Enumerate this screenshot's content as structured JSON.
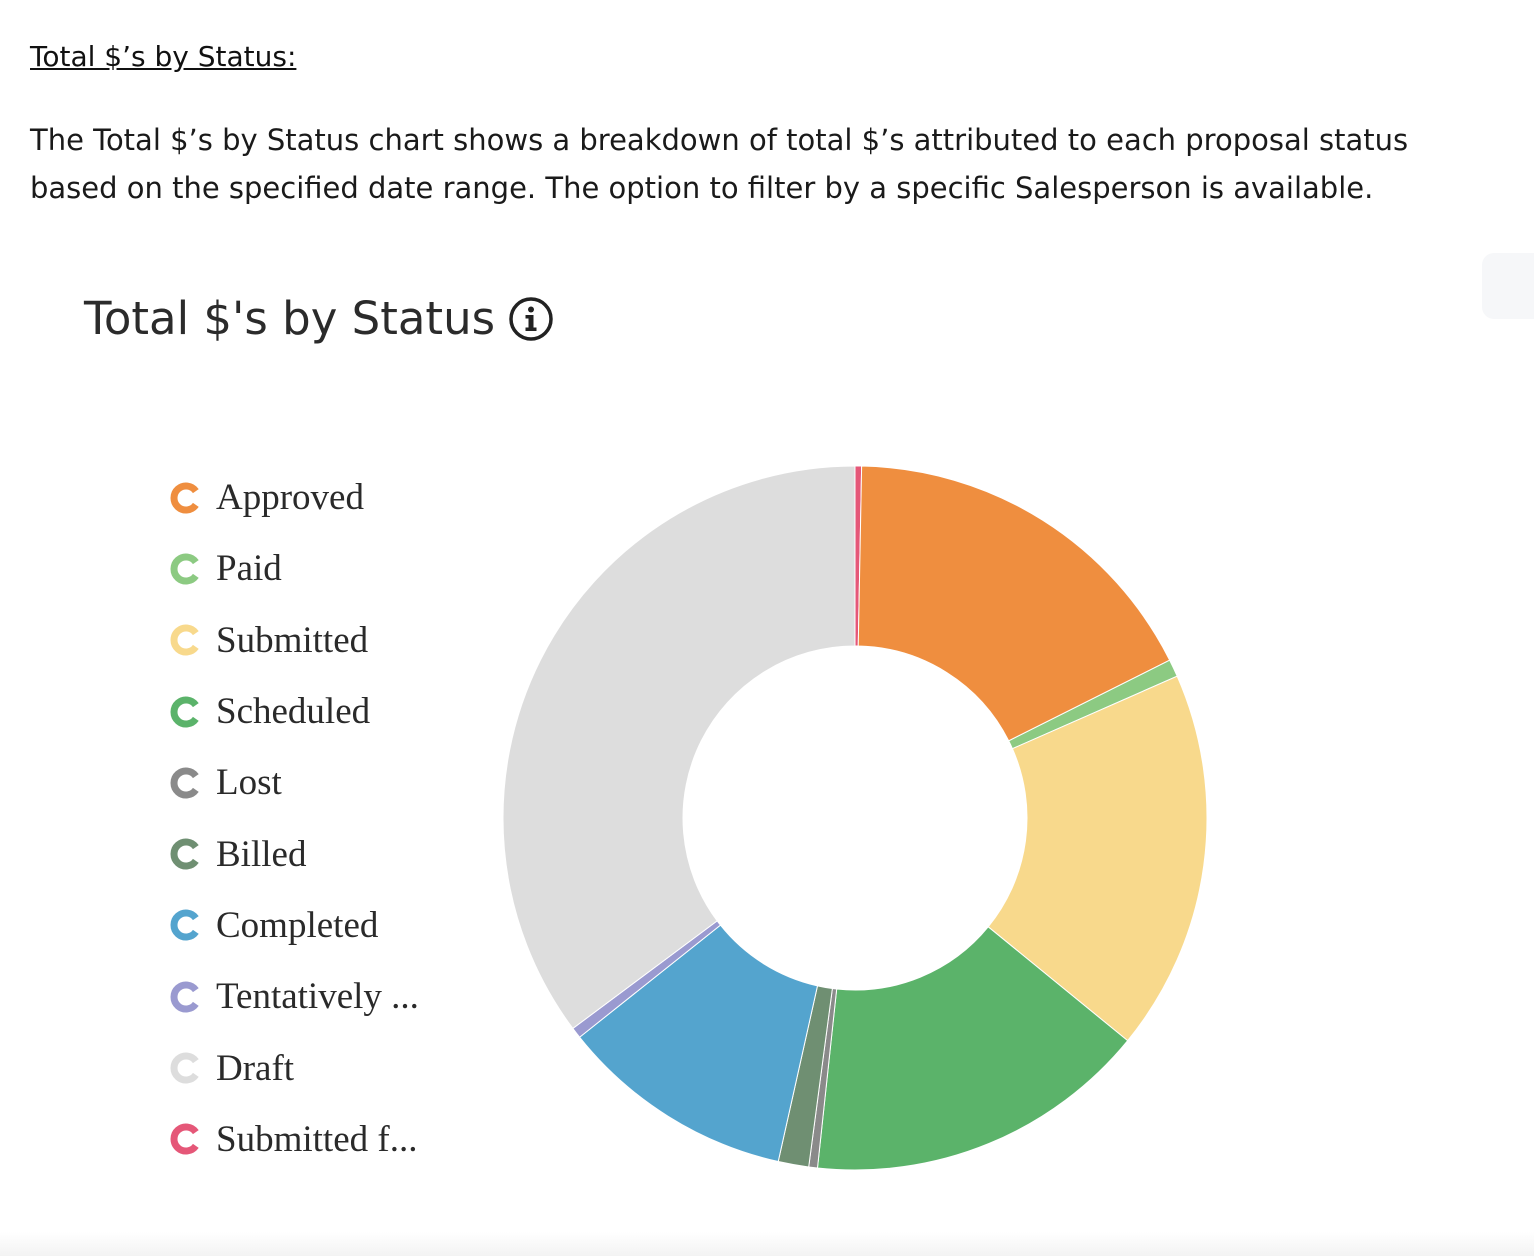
{
  "section": {
    "heading": "Total $’s by Status:",
    "description": "The Total $’s by Status chart shows a breakdown of total $’s attributed to each proposal status based on the specified date range. The option to filter by a specific Salesperson is available."
  },
  "chart_header": {
    "title": "Total $'s by Status",
    "info_icon": "info-circle-icon"
  },
  "legend": [
    {
      "label": "Approved",
      "color": "#ef8e3f"
    },
    {
      "label": "Paid",
      "color": "#8cca82"
    },
    {
      "label": "Submitted",
      "color": "#f8d98c"
    },
    {
      "label": "Scheduled",
      "color": "#5bb36a"
    },
    {
      "label": "Lost",
      "color": "#8a8a8a"
    },
    {
      "label": "Billed",
      "color": "#6f8f72"
    },
    {
      "label": "Completed",
      "color": "#54a4ce"
    },
    {
      "label": "Tentatively ...",
      "color": "#9a9ad0"
    },
    {
      "label": "Draft",
      "color": "#dddddd"
    },
    {
      "label": "Submitted f...",
      "color": "#e55778"
    }
  ],
  "chart_data": {
    "type": "pie",
    "donut": true,
    "legend_position": "left",
    "title": "Total $'s by Status",
    "series": [
      {
        "name": "Submitted f...",
        "value": 0.3,
        "color": "#e55778"
      },
      {
        "name": "Approved",
        "value": 17.3,
        "color": "#ef8e3f"
      },
      {
        "name": "Paid",
        "value": 0.8,
        "color": "#8cca82"
      },
      {
        "name": "Submitted",
        "value": 17.5,
        "color": "#f8d98c"
      },
      {
        "name": "Scheduled",
        "value": 15.8,
        "color": "#5bb36a"
      },
      {
        "name": "Lost",
        "value": 0.4,
        "color": "#8a8a8a"
      },
      {
        "name": "Billed",
        "value": 1.4,
        "color": "#6f8f72"
      },
      {
        "name": "Completed",
        "value": 10.8,
        "color": "#54a4ce"
      },
      {
        "name": "Tentatively ...",
        "value": 0.5,
        "color": "#9a9ad0"
      },
      {
        "name": "Draft",
        "value": 35.2,
        "color": "#dddddd"
      }
    ]
  }
}
